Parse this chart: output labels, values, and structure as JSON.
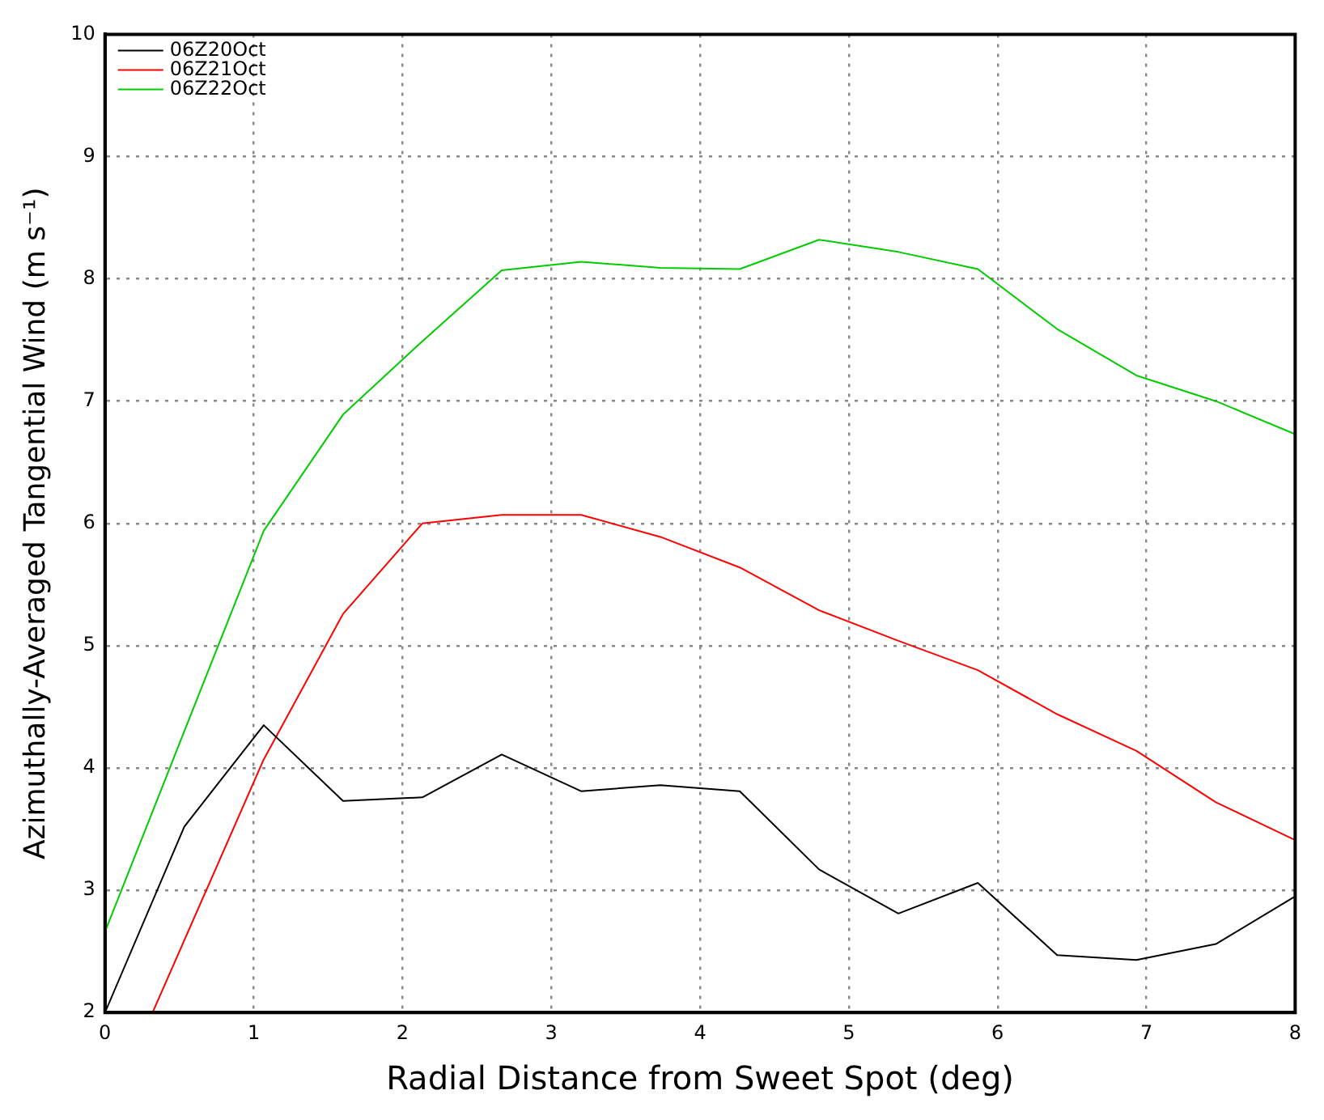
{
  "chart_data": {
    "type": "line",
    "xlabel": "Radial Distance from Sweet Spot (deg)",
    "ylabel": "Azimuthally-Averaged Tangential Wind (m s⁻¹)",
    "x": [
      0,
      0.533,
      1.067,
      1.6,
      2.133,
      2.667,
      3.2,
      3.733,
      4.267,
      4.8,
      5.333,
      5.867,
      6.4,
      6.933,
      7.467,
      8
    ],
    "series": [
      {
        "name": "06Z20Oct",
        "color": "#000000",
        "values": [
          2.0,
          3.52,
          4.35,
          3.73,
          3.76,
          4.11,
          3.81,
          3.86,
          3.81,
          3.17,
          2.81,
          3.06,
          2.47,
          2.43,
          2.56,
          2.95
        ]
      },
      {
        "name": "06Z21Oct",
        "color": "#ff0000",
        "x": [
          0.32,
          1.067,
          1.6,
          2.133,
          2.667,
          3.2,
          3.733,
          4.267,
          4.8,
          5.333,
          5.867,
          6.4,
          6.933,
          7.467,
          8
        ],
        "values": [
          2.0,
          4.07,
          5.26,
          6.0,
          6.07,
          6.07,
          5.89,
          5.64,
          5.29,
          5.04,
          4.8,
          4.44,
          4.14,
          3.72,
          3.41
        ]
      },
      {
        "name": "06Z22Oct",
        "color": "#00cc00",
        "values": [
          2.66,
          4.3,
          5.94,
          6.89,
          7.49,
          8.07,
          8.14,
          8.09,
          8.08,
          8.32,
          8.22,
          8.08,
          7.59,
          7.21,
          7.0,
          6.73
        ]
      }
    ],
    "xlim": [
      0,
      8
    ],
    "xticks": [
      0,
      1,
      2,
      3,
      4,
      5,
      6,
      7,
      8
    ],
    "ylim": [
      2,
      10
    ],
    "yticks": [
      2,
      3,
      4,
      5,
      6,
      7,
      8,
      9,
      10
    ],
    "grid": true,
    "legend": "top left",
    "marker": "none",
    "line_style": "solid"
  }
}
